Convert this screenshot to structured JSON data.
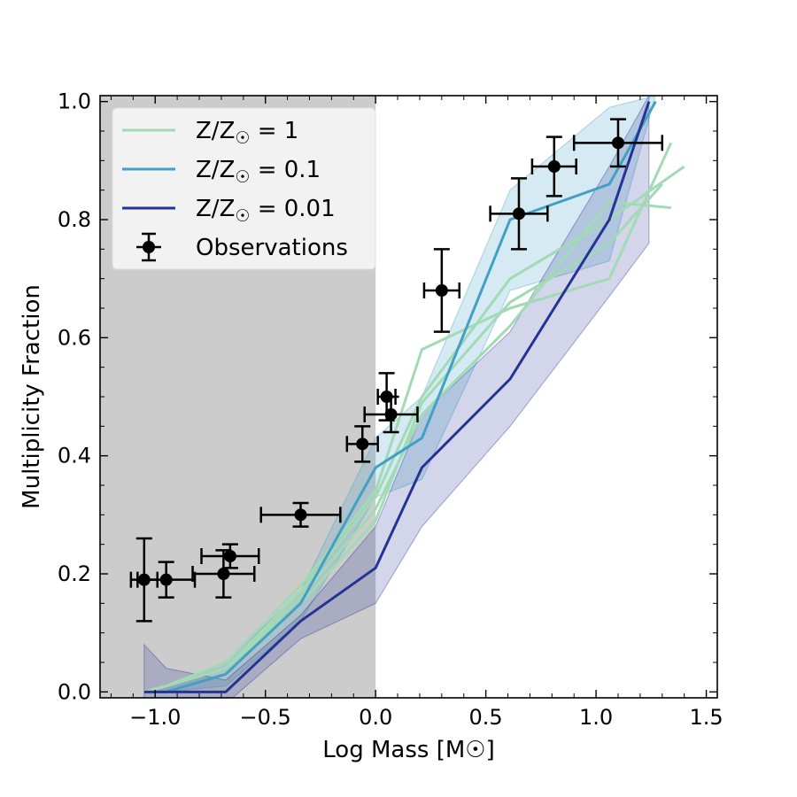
{
  "chart_data": {
    "type": "line",
    "xlabel": "Log Mass [M☉]",
    "ylabel": "Multiplicity Fraction",
    "xlim": [
      -1.25,
      1.55
    ],
    "ylim": [
      -0.01,
      1.01
    ],
    "xticks": [
      -1.0,
      -0.5,
      0.0,
      0.5,
      1.0,
      1.5
    ],
    "xtick_labels": [
      "−1.0",
      "−0.5",
      "0.0",
      "0.5",
      "1.0",
      "1.5"
    ],
    "yticks": [
      0.0,
      0.2,
      0.4,
      0.6,
      0.8,
      1.0
    ],
    "ytick_labels": [
      "0.0",
      "0.2",
      "0.4",
      "0.6",
      "0.8",
      "1.0"
    ],
    "shaded_region": {
      "x_from": -1.25,
      "x_to": 0.0,
      "color": "#cccccc"
    },
    "legend": {
      "position": "upper-left",
      "entries": [
        {
          "label_base": "Z/Z",
          "label_sub": "☉",
          "label_rest": " = 1",
          "color": "#a1dab4",
          "marker": "line"
        },
        {
          "label_base": "Z/Z",
          "label_sub": "☉",
          "label_rest": " = 0.1",
          "color": "#41a0c4",
          "marker": "line"
        },
        {
          "label_base": "Z/Z",
          "label_sub": "☉",
          "label_rest": " = 0.01",
          "color": "#253494",
          "marker": "line"
        },
        {
          "label_base": "Observations",
          "label_sub": "",
          "label_rest": "",
          "color": "#000000",
          "marker": "errorbar"
        }
      ]
    },
    "bands": [
      {
        "name": "Z/Z☉ = 0.1 range",
        "color": "#41a0c4",
        "opacity": 0.22,
        "x": [
          -1.05,
          -0.95,
          -0.68,
          -0.34,
          0.0,
          0.21,
          0.61,
          1.06,
          1.27
        ],
        "lower": [
          0.0,
          0.0,
          0.01,
          0.12,
          0.33,
          0.36,
          0.68,
          0.73,
          1.01
        ],
        "upper": [
          0.0,
          0.01,
          0.05,
          0.17,
          0.43,
          0.5,
          0.85,
          0.99,
          1.01
        ]
      },
      {
        "name": "Z/Z☉ = 0.01 range",
        "color": "#253494",
        "opacity": 0.2,
        "x": [
          -1.05,
          -0.95,
          -0.68,
          -0.34,
          0.0,
          0.21,
          0.61,
          1.06,
          1.24
        ],
        "lower": [
          -0.02,
          -0.02,
          -0.02,
          0.09,
          0.15,
          0.28,
          0.45,
          0.67,
          0.76
        ],
        "upper": [
          0.08,
          0.04,
          0.02,
          0.13,
          0.28,
          0.47,
          0.61,
          0.89,
          1.01
        ]
      }
    ],
    "series": [
      {
        "name": "Z/Z☉ = 1 (a)",
        "color": "#a1dab4",
        "width": 3,
        "x": [
          -1.05,
          -0.95,
          -0.68,
          -0.34,
          0.0,
          0.21,
          0.61,
          1.06,
          1.34
        ],
        "y": [
          0.0,
          0.01,
          0.05,
          0.18,
          0.34,
          0.58,
          0.65,
          0.7,
          0.93
        ]
      },
      {
        "name": "Z/Z☉ = 1 (b)",
        "color": "#a1dab4",
        "width": 3,
        "x": [
          -1.05,
          -0.95,
          -0.68,
          -0.34,
          0.0,
          0.21,
          0.61,
          1.06,
          1.4
        ],
        "y": [
          0.0,
          0.01,
          0.04,
          0.17,
          0.33,
          0.5,
          0.7,
          0.8,
          0.89
        ]
      },
      {
        "name": "Z/Z☉ = 1 (c)",
        "color": "#a1dab4",
        "width": 3,
        "x": [
          -1.05,
          -0.95,
          -0.68,
          -0.34,
          0.0,
          0.21,
          0.61,
          1.06,
          1.34
        ],
        "y": [
          0.0,
          0.01,
          0.04,
          0.16,
          0.31,
          0.47,
          0.62,
          0.83,
          0.82
        ]
      },
      {
        "name": "Z/Z☉ = 1 (d)",
        "color": "#a1dab4",
        "width": 3,
        "x": [
          -1.05,
          -0.95,
          -0.68,
          -0.34,
          0.0,
          0.21,
          0.61,
          1.06,
          1.3
        ],
        "y": [
          0.0,
          0.01,
          0.04,
          0.15,
          0.29,
          0.49,
          0.66,
          0.76,
          0.86
        ]
      },
      {
        "name": "Z/Z☉ = 0.1",
        "color": "#41a0c4",
        "width": 3,
        "x": [
          -1.05,
          -0.95,
          -0.68,
          -0.34,
          0.0,
          0.21,
          0.61,
          1.06,
          1.27
        ],
        "y": [
          0.0,
          0.0,
          0.03,
          0.15,
          0.38,
          0.43,
          0.8,
          0.86,
          1.0
        ]
      },
      {
        "name": "Z/Z☉ = 0.01",
        "color": "#253494",
        "width": 3,
        "x": [
          -1.05,
          -0.95,
          -0.68,
          -0.34,
          0.0,
          0.21,
          0.61,
          1.06,
          1.24
        ],
        "y": [
          0.0,
          0.0,
          0.0,
          0.12,
          0.21,
          0.38,
          0.53,
          0.8,
          1.0
        ]
      }
    ],
    "observations": {
      "name": "Observations",
      "color": "#000000",
      "points": [
        {
          "x": -1.05,
          "y": 0.19,
          "xerr": 0.06,
          "yerr": 0.07
        },
        {
          "x": -0.95,
          "y": 0.19,
          "xerr": 0.13,
          "yerr": 0.03
        },
        {
          "x": -0.69,
          "y": 0.2,
          "xerr": 0.14,
          "yerr": 0.04
        },
        {
          "x": -0.66,
          "y": 0.23,
          "xerr": 0.13,
          "yerr": 0.02
        },
        {
          "x": -0.34,
          "y": 0.3,
          "xerr": 0.18,
          "yerr": 0.02
        },
        {
          "x": -0.06,
          "y": 0.42,
          "xerr": 0.07,
          "yerr": 0.03
        },
        {
          "x": 0.05,
          "y": 0.5,
          "xerr": 0.04,
          "yerr": 0.04
        },
        {
          "x": 0.07,
          "y": 0.47,
          "xerr": 0.12,
          "yerr": 0.03
        },
        {
          "x": 0.3,
          "y": 0.68,
          "xerr": 0.08,
          "yerr": 0.07
        },
        {
          "x": 0.65,
          "y": 0.81,
          "xerr": 0.13,
          "yerr": 0.06
        },
        {
          "x": 0.81,
          "y": 0.89,
          "xerr": 0.1,
          "yerr": 0.05
        },
        {
          "x": 1.1,
          "y": 0.93,
          "xerr": 0.2,
          "yerr": 0.04
        }
      ]
    }
  }
}
